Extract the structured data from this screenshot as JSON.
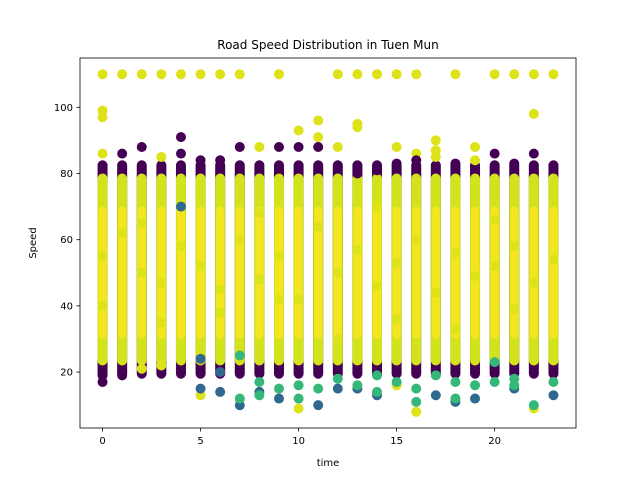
{
  "chart_data": {
    "type": "scatter",
    "title": "Road Speed Distribution in Tuen Mun",
    "xlabel": "time",
    "ylabel": "Speed",
    "xlim": [
      -1.15,
      24.15
    ],
    "ylim": [
      3.1,
      114.9
    ],
    "xticks": [
      0,
      5,
      10,
      15,
      20
    ],
    "yticks": [
      20,
      40,
      60,
      80,
      100
    ],
    "grid": false,
    "legend": "none",
    "colormap": [
      "#440154",
      "#31688e",
      "#35b779",
      "#fde725"
    ],
    "series": [
      {
        "name": "",
        "x": [
          0,
          1,
          2,
          3,
          4,
          5,
          6,
          7,
          9,
          12,
          13,
          14,
          15,
          16,
          18,
          20,
          21,
          22,
          23,
          0,
          0,
          22,
          11,
          11,
          11,
          4,
          9,
          10,
          12,
          15,
          17,
          17,
          13,
          13,
          16,
          19,
          0,
          0,
          0,
          1,
          1,
          1,
          2,
          2,
          3,
          3,
          4,
          4,
          5,
          5,
          6,
          6,
          7,
          7,
          8,
          8,
          9,
          9,
          10,
          10,
          11,
          11,
          12,
          12,
          13,
          13,
          14,
          14,
          15,
          15,
          16,
          16,
          17,
          17,
          18,
          18,
          19,
          19,
          20,
          20,
          21,
          21,
          22,
          22,
          23,
          23,
          4,
          5,
          5,
          6,
          7,
          7,
          8,
          8,
          9,
          10,
          10,
          11,
          12,
          13,
          14,
          14,
          15,
          16,
          16,
          17,
          18,
          18,
          19,
          20,
          21,
          21,
          22,
          23,
          0,
          1,
          2,
          3,
          4,
          5,
          6,
          7,
          8,
          9,
          10,
          11,
          12,
          13,
          14,
          15,
          16,
          17,
          18,
          19,
          20,
          21,
          22,
          23,
          0,
          3,
          6,
          9,
          12,
          15,
          18,
          21,
          2,
          8,
          14,
          20
        ],
        "y": [
          110,
          110,
          110,
          110,
          110,
          110,
          110,
          110,
          110,
          110,
          110,
          110,
          110,
          110,
          110,
          110,
          110,
          110,
          110,
          99,
          97,
          98,
          96,
          91,
          88,
          91,
          88,
          93,
          88,
          88,
          90,
          87,
          95,
          94,
          86,
          88,
          86,
          17,
          19,
          86,
          20,
          19,
          88,
          21,
          85,
          22,
          86,
          20,
          84,
          13,
          84,
          14,
          88,
          10,
          88,
          14,
          88,
          12,
          88,
          9,
          88,
          10,
          82,
          15,
          80,
          15,
          81,
          13,
          83,
          16,
          84,
          8,
          85,
          13,
          83,
          11,
          84,
          12,
          86,
          17,
          83,
          15,
          86,
          9,
          82,
          13,
          70,
          24,
          15,
          20,
          25,
          12,
          17,
          13,
          15,
          16,
          12,
          15,
          18,
          16,
          14,
          19,
          17,
          11,
          15,
          19,
          12,
          17,
          16,
          23,
          16,
          18,
          10,
          17,
          55,
          62,
          50,
          47,
          58,
          52,
          45,
          60,
          48,
          55,
          42,
          64,
          50,
          57,
          46,
          53,
          60,
          44,
          56,
          49,
          52,
          58,
          47,
          54,
          40,
          35,
          38,
          42,
          30,
          36,
          33,
          39,
          65,
          68,
          70,
          66
        ],
        "c": [
          3,
          3,
          3,
          3,
          3,
          3,
          3,
          3,
          3,
          3,
          3,
          3,
          3,
          3,
          3,
          3,
          3,
          3,
          3,
          3,
          3,
          3,
          3,
          3,
          3,
          0,
          3,
          3,
          3,
          3,
          3,
          3,
          3,
          3,
          3,
          3,
          3,
          0,
          0,
          0,
          0,
          0,
          0,
          3,
          3,
          3,
          0,
          0,
          0,
          3,
          0,
          1,
          0,
          1,
          3,
          1,
          0,
          1,
          0,
          3,
          0,
          1,
          0,
          1,
          0,
          1,
          0,
          1,
          0,
          3,
          0,
          3,
          3,
          1,
          0,
          1,
          3,
          1,
          0,
          2,
          0,
          1,
          0,
          3,
          0,
          1,
          1,
          1,
          1,
          1,
          2,
          2,
          2,
          2,
          2,
          2,
          2,
          2,
          2,
          2,
          2,
          2,
          2,
          2,
          2,
          2,
          2,
          2,
          2,
          2,
          2,
          2,
          2,
          2,
          3,
          3,
          3,
          3,
          3,
          3,
          3,
          3,
          3,
          3,
          3,
          3,
          3,
          3,
          3,
          3,
          3,
          3,
          3,
          3,
          3,
          3,
          3,
          3,
          3,
          3,
          3,
          3,
          3,
          3,
          3,
          3,
          3,
          3,
          3,
          3
        ]
      }
    ]
  }
}
